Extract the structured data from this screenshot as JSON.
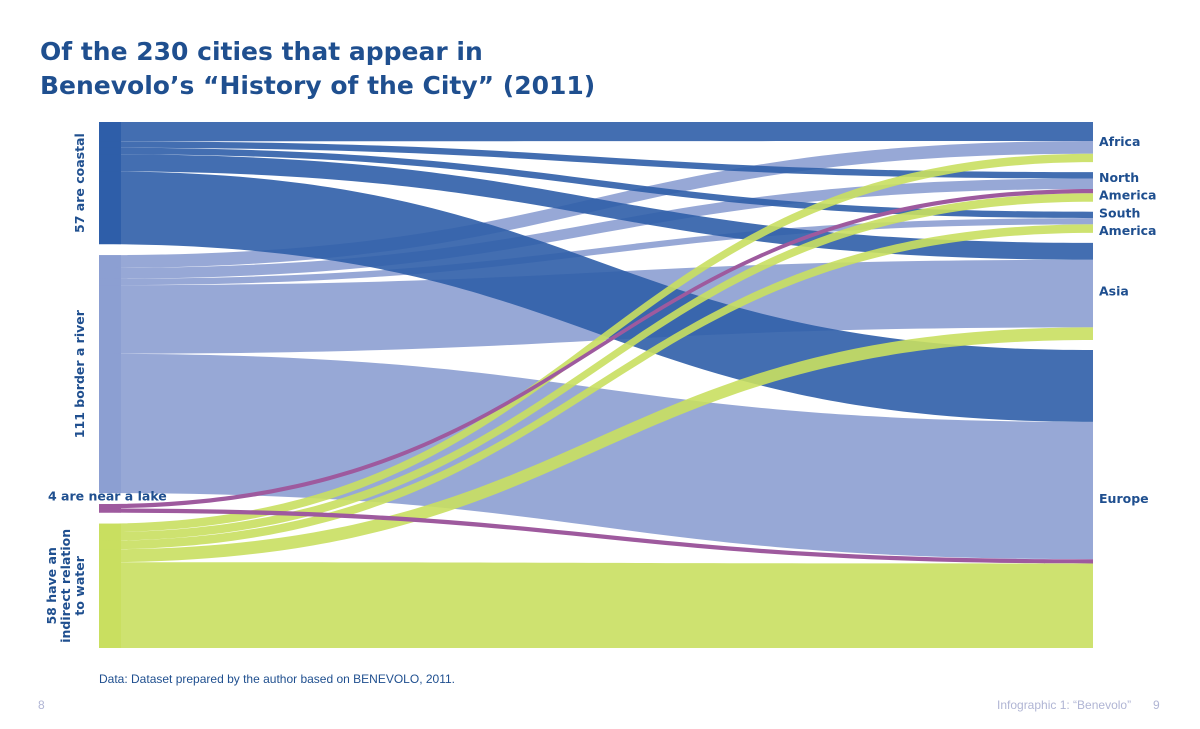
{
  "title_lines": [
    "Of the 230 cities that appear in",
    "Benevolo’s “History of the City” (2011)"
  ],
  "source": "Data: Dataset prepared by the author based on BENEVOLO, 2011.",
  "footer": {
    "page_left": "8",
    "running_title": "Infographic 1: “Benevolo”",
    "page_right": "9"
  },
  "colors": {
    "coastal": "#2f5ea8",
    "river": "#8c9ed2",
    "lake": "#9e5a9e",
    "indirect": "#c9df60",
    "label": "#1f4f8f"
  },
  "chart_data": {
    "type": "sankey",
    "unit": "cities",
    "total": 230,
    "sources": [
      {
        "id": "coastal",
        "label_lines": [
          "57 are coastal"
        ],
        "value": 57,
        "color": "#2f5ea8"
      },
      {
        "id": "river",
        "label_lines": [
          "111 border a river"
        ],
        "value": 111,
        "color": "#8c9ed2"
      },
      {
        "id": "lake",
        "label_lines": [
          "4 are near a lake"
        ],
        "value": 4,
        "color": "#9e5a9e"
      },
      {
        "id": "indirect",
        "label_lines": [
          "58 have an",
          "indirect relation",
          "to water"
        ],
        "value": 58,
        "color": "#c9df60"
      }
    ],
    "targets": [
      {
        "id": "africa",
        "label_lines": [
          "Africa"
        ]
      },
      {
        "id": "north_america",
        "label_lines": [
          "North",
          "America"
        ]
      },
      {
        "id": "south_america",
        "label_lines": [
          "South",
          "America"
        ]
      },
      {
        "id": "asia",
        "label_lines": [
          "Asia"
        ]
      },
      {
        "id": "europe",
        "label_lines": [
          "Europe"
        ]
      }
    ],
    "flows": [
      {
        "source": "coastal",
        "target": "africa",
        "value": 9
      },
      {
        "source": "coastal",
        "target": "north_america",
        "value": 3
      },
      {
        "source": "coastal",
        "target": "south_america",
        "value": 3
      },
      {
        "source": "coastal",
        "target": "asia",
        "value": 8
      },
      {
        "source": "coastal",
        "target": "europe",
        "value": 34
      },
      {
        "source": "river",
        "target": "africa",
        "value": 6
      },
      {
        "source": "river",
        "target": "north_america",
        "value": 5
      },
      {
        "source": "river",
        "target": "south_america",
        "value": 3
      },
      {
        "source": "river",
        "target": "asia",
        "value": 32
      },
      {
        "source": "river",
        "target": "europe",
        "value": 65
      },
      {
        "source": "lake",
        "target": "north_america",
        "value": 2
      },
      {
        "source": "lake",
        "target": "europe",
        "value": 2
      },
      {
        "source": "indirect",
        "target": "africa",
        "value": 4
      },
      {
        "source": "indirect",
        "target": "north_america",
        "value": 4
      },
      {
        "source": "indirect",
        "target": "south_america",
        "value": 4
      },
      {
        "source": "indirect",
        "target": "asia",
        "value": 6
      },
      {
        "source": "indirect",
        "target": "europe",
        "value": 40
      }
    ]
  }
}
